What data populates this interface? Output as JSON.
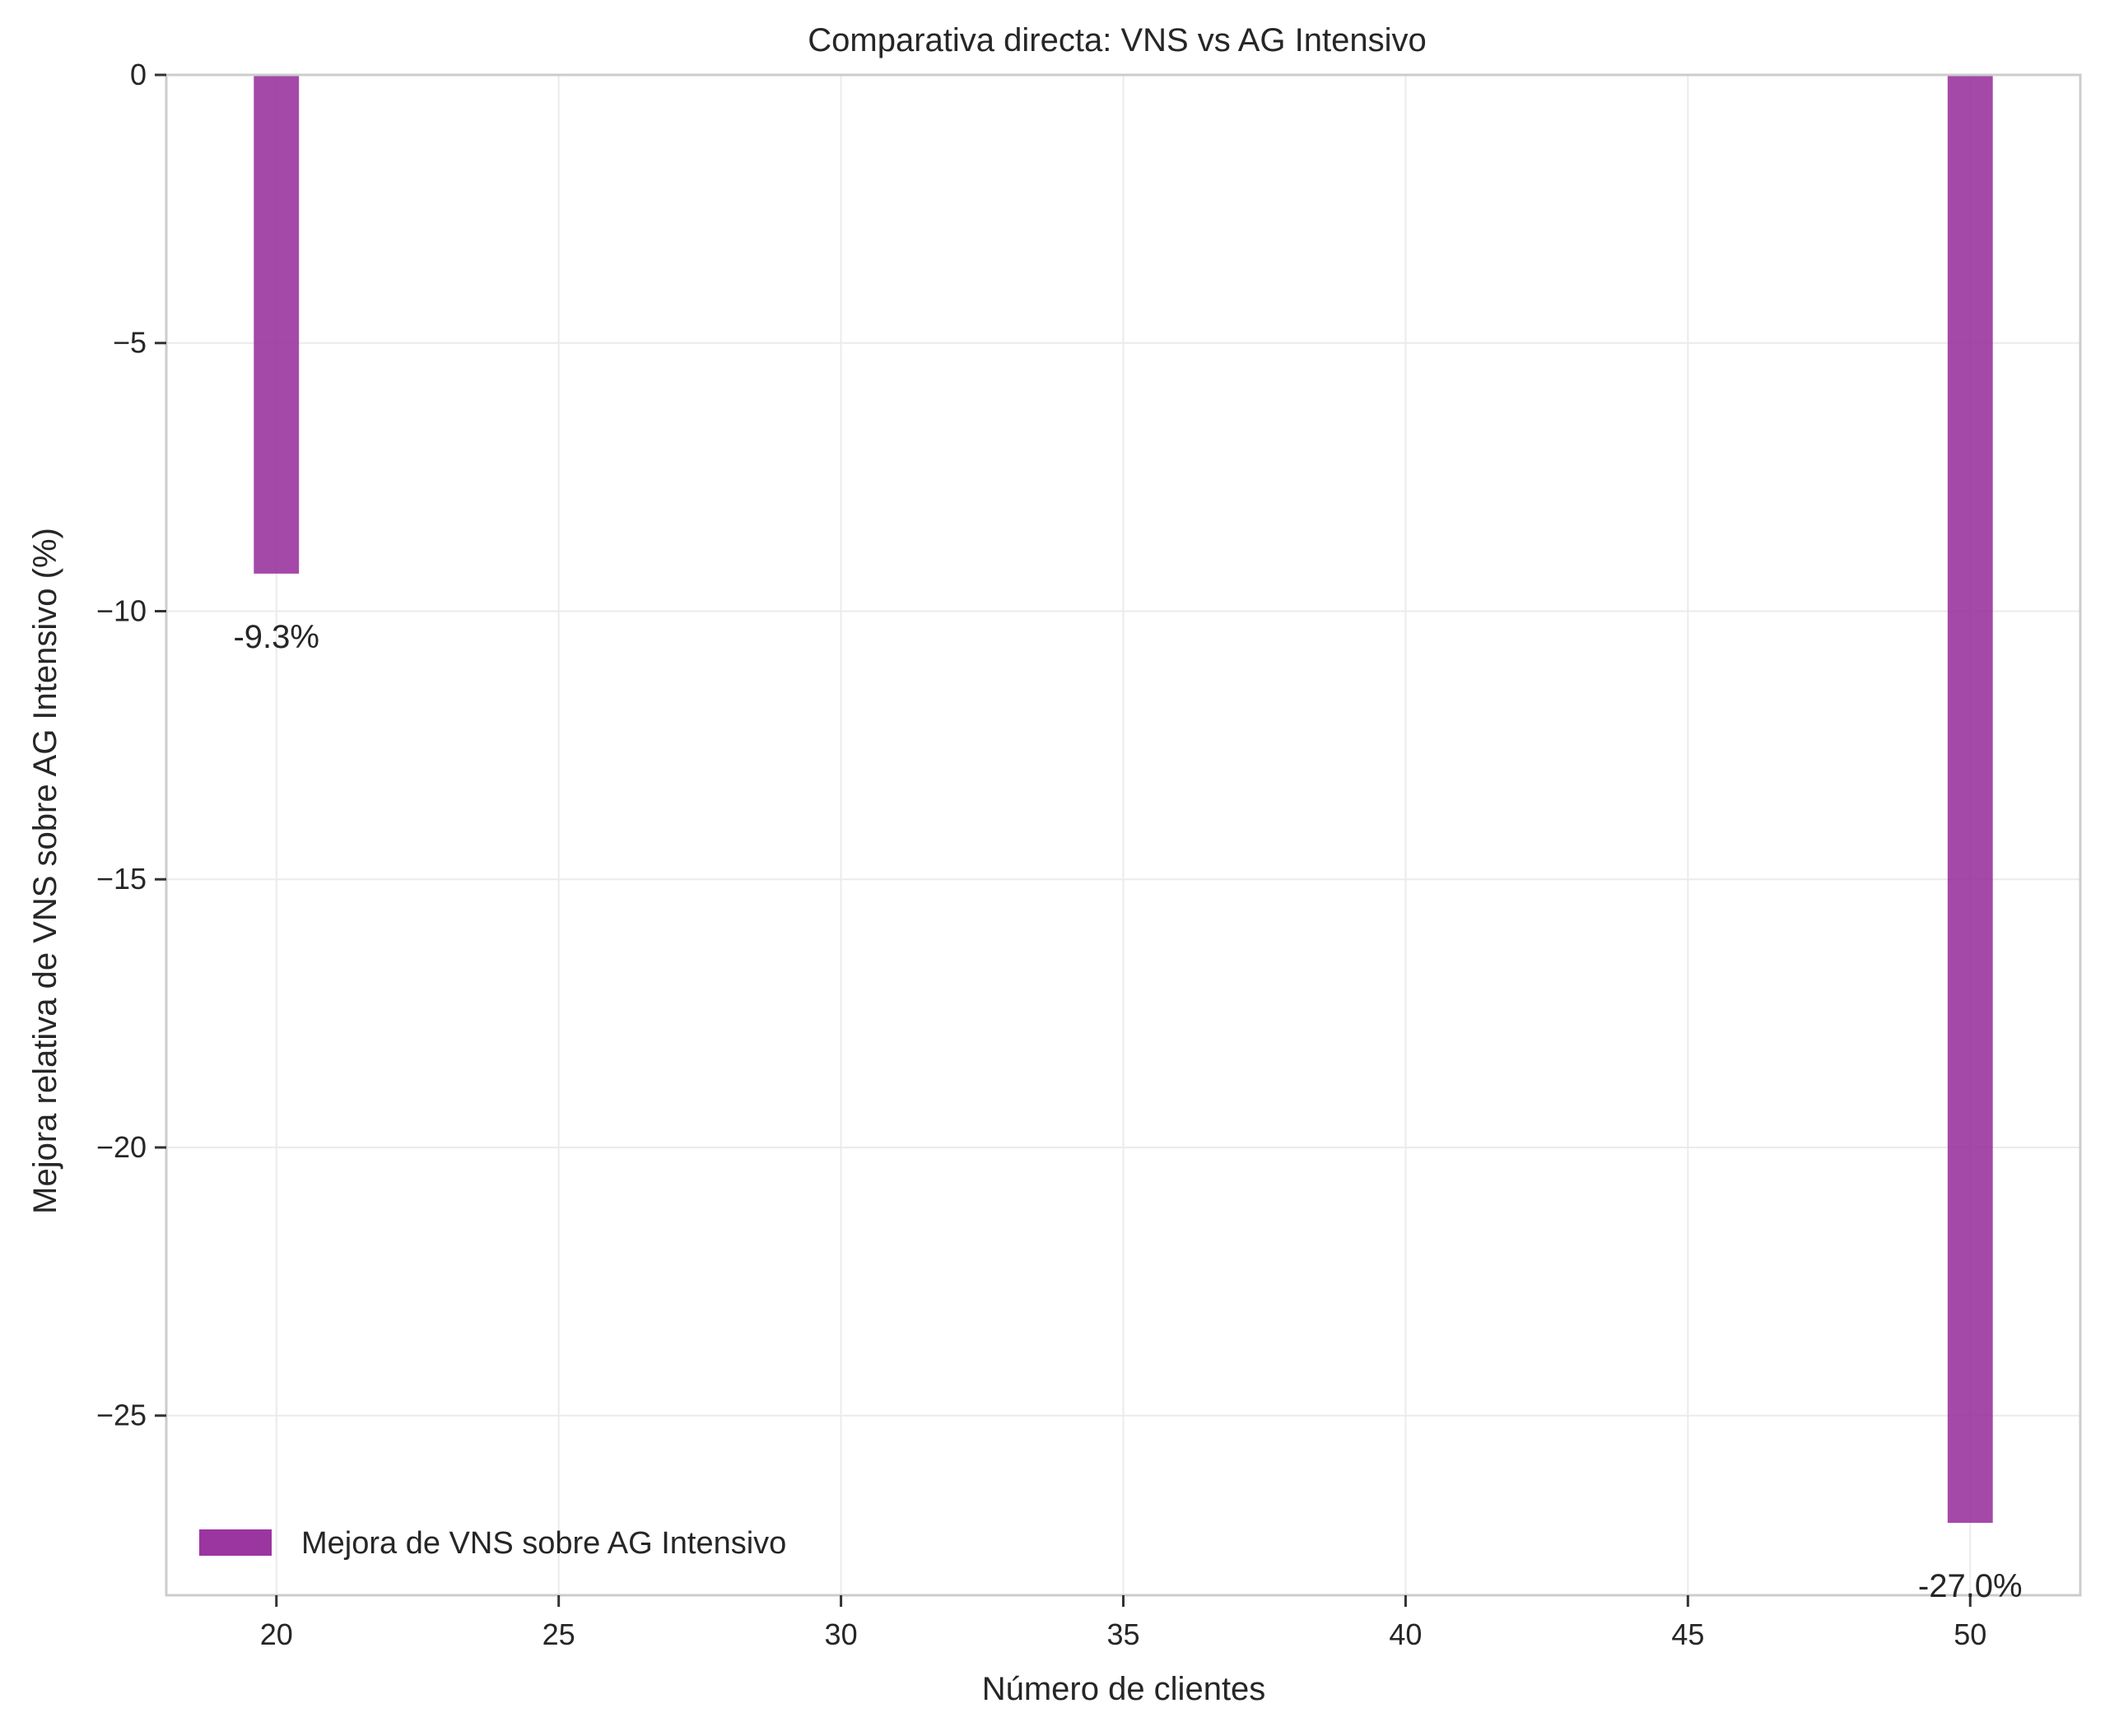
{
  "chart_data": {
    "type": "bar",
    "title": "Comparativa directa: VNS vs AG Intensivo",
    "xlabel": "Número de clientes",
    "ylabel": "Mejora relativa de VNS sobre AG Intensivo (%)",
    "x": [
      20,
      50
    ],
    "values": [
      -9.3,
      -27.0
    ],
    "value_labels": [
      "-9.3%",
      "-27.0%"
    ],
    "series": [
      {
        "name": "Mejora de VNS sobre AG Intensivo",
        "values": [
          -9.3,
          -27.0
        ]
      }
    ],
    "xlim": [
      18.05,
      51.95
    ],
    "ylim": [
      -28.35,
      0
    ],
    "xticks": [
      20,
      25,
      30,
      35,
      40,
      45,
      50
    ],
    "xtick_labels": [
      "20",
      "25",
      "30",
      "35",
      "40",
      "45",
      "50"
    ],
    "yticks": [
      0,
      -5,
      -10,
      -15,
      -20,
      -25
    ],
    "ytick_labels": [
      "0",
      "−5",
      "−10",
      "−15",
      "−20",
      "−25"
    ],
    "bar_width": 0.8,
    "grid": true,
    "legend_position": "lower-left",
    "colors": {
      "bar": "#9b35a0",
      "grid": "#ebebeb",
      "spine": "#cccccc"
    }
  }
}
